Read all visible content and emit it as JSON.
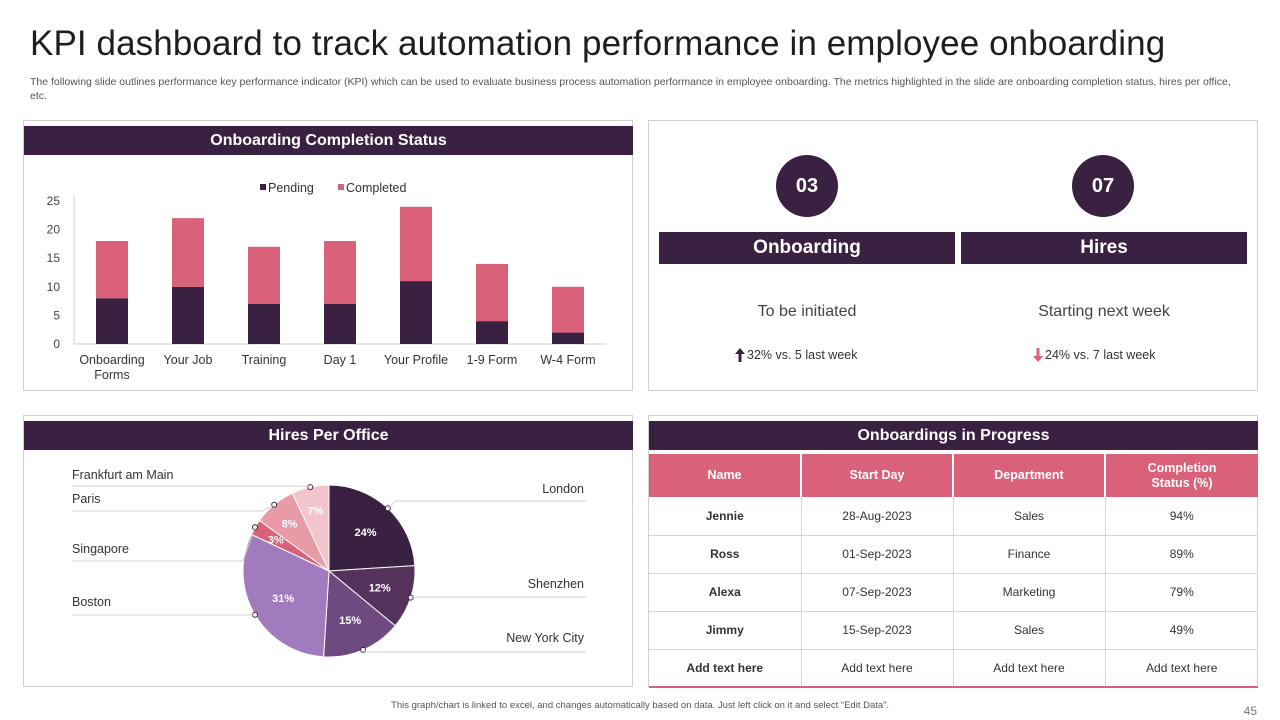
{
  "page": {
    "title": "KPI dashboard to track automation performance in employee onboarding",
    "subtitle": "The following slide outlines performance key performance indicator (KPI) which can be used to evaluate business process automation performance in employee onboarding. The metrics highlighted in the slide are onboarding completion status, hires per office, etc.",
    "footer": "This graph/chart is linked to excel, and changes automatically based on data. Just left click on it and select “Edit Data”.",
    "page_number": "45"
  },
  "colors": {
    "dark": "#3a2141",
    "accent": "#d9617a",
    "up_arrow": "#3a2141",
    "down_arrow": "#d9617a"
  },
  "panels": {
    "completion_title": "Onboarding Completion Status",
    "hires_office_title": "Hires Per Office",
    "progress_title": "Onboardings in Progress"
  },
  "kpis": {
    "onboarding": {
      "value": "03",
      "label": "Onboarding",
      "description": "To be initiated",
      "delta": "32% vs. 5 last week",
      "direction": "up"
    },
    "hires": {
      "value": "07",
      "label": "Hires",
      "description": "Starting next week",
      "delta": "24% vs. 7 last week",
      "direction": "down"
    }
  },
  "table": {
    "headers": [
      "Name",
      "Start Day",
      "Department",
      "Completion Status (%)"
    ],
    "rows": [
      [
        "Jennie",
        "28-Aug-2023",
        "Sales",
        "94%"
      ],
      [
        "Ross",
        "01-Sep-2023",
        "Finance",
        "89%"
      ],
      [
        "Alexa",
        "07-Sep-2023",
        "Marketing",
        "79%"
      ],
      [
        "Jimmy",
        "15-Sep-2023",
        "Sales",
        "49%"
      ],
      [
        "Add text here",
        "Add text here",
        "Add text here",
        "Add text here"
      ]
    ]
  },
  "chart_data": [
    {
      "type": "bar",
      "stacked": true,
      "title": "Onboarding Completion Status",
      "categories": [
        "Onboarding Forms",
        "Your Job",
        "Training",
        "Day 1",
        "Your Profile",
        "1-9 Form",
        "W-4 Form"
      ],
      "category_lines": [
        [
          "Onboarding",
          "Forms"
        ],
        [
          "Your Job"
        ],
        [
          "Training"
        ],
        [
          "Day 1"
        ],
        [
          "Your Profile"
        ],
        [
          "1-9 Form"
        ],
        [
          "W-4 Form"
        ]
      ],
      "series": [
        {
          "name": "Pending",
          "values": [
            8,
            10,
            7,
            7,
            11,
            4,
            2
          ],
          "color": "#3a2141"
        },
        {
          "name": "Completed",
          "values": [
            10,
            12,
            10,
            11,
            13,
            10,
            8
          ],
          "color": "#d9617a"
        }
      ],
      "ylim": [
        0,
        25
      ],
      "yticks": [
        0,
        5,
        10,
        15,
        20,
        25
      ],
      "legend": "top-center",
      "grid": false
    },
    {
      "type": "pie",
      "title": "Hires Per Office",
      "slices": [
        {
          "label": "London",
          "value": 24,
          "pct_label": "24%",
          "color": "#3a2141"
        },
        {
          "label": "Shenzhen",
          "value": 12,
          "pct_label": "12%",
          "color": "#55325c"
        },
        {
          "label": "New York City",
          "value": 15,
          "pct_label": "15%",
          "color": "#6e4a80"
        },
        {
          "label": "Boston",
          "value": 31,
          "pct_label": "31%",
          "color": "#a07cbf"
        },
        {
          "label": "Singapore",
          "value": 3,
          "pct_label": "3%",
          "color": "#d9617a"
        },
        {
          "label": "Paris",
          "value": 8,
          "pct_label": "8%",
          "color": "#e89aa7"
        },
        {
          "label": "Frankfurt  am Main",
          "value": 7,
          "pct_label": "7%",
          "color": "#f2c4cc"
        }
      ]
    }
  ]
}
